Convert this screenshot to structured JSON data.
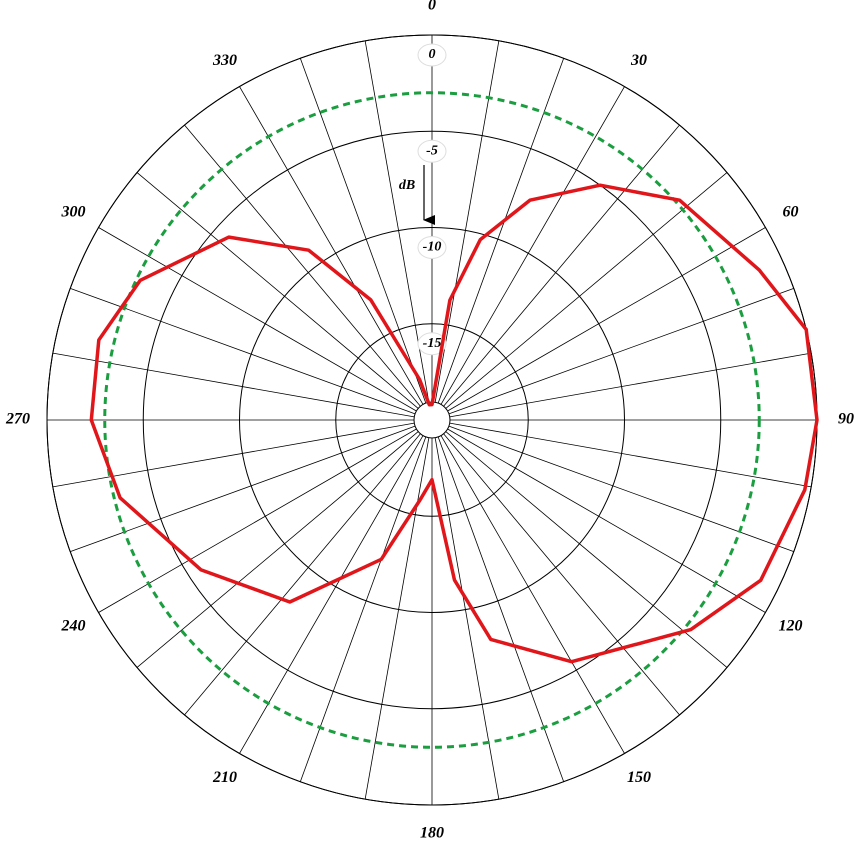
{
  "chart_data": {
    "type": "polar",
    "r_axis_label": "dB",
    "rlim": [
      -20,
      0
    ],
    "rticks": [
      0,
      -5,
      -10,
      -15
    ],
    "thetaticks": [
      0,
      30,
      60,
      90,
      120,
      150,
      180,
      210,
      240,
      270,
      300,
      330
    ],
    "theta_grid_step": 10,
    "reference": {
      "value": -3,
      "color": "#1a9e3f"
    },
    "series": [
      {
        "color": "#e0161b",
        "theta": [
          0,
          8.5,
          15,
          24,
          35.6,
          48.4,
          65.4,
          76.4,
          90,
          100.6,
          116,
          129,
          150,
          165,
          172,
          180,
          188.5,
          200,
          218,
          237,
          256,
          270,
          283.5,
          295.6,
          312,
          324,
          333,
          343,
          350
        ],
        "values": [
          -19.2,
          -13.7,
          -10.3,
          -7.5,
          -5.0,
          -2.8,
          -1.3,
          0,
          0,
          -0.3,
          -1.0,
          -2.7,
          -5.5,
          -8.2,
          -11.6,
          -16.9,
          -15.8,
          -12.3,
          -8.0,
          -5.7,
          -3.3,
          -2.3,
          -2.2,
          -3.2,
          -5.8,
          -9.1,
          -13.0,
          -17.8,
          -19.2
        ]
      }
    ]
  }
}
